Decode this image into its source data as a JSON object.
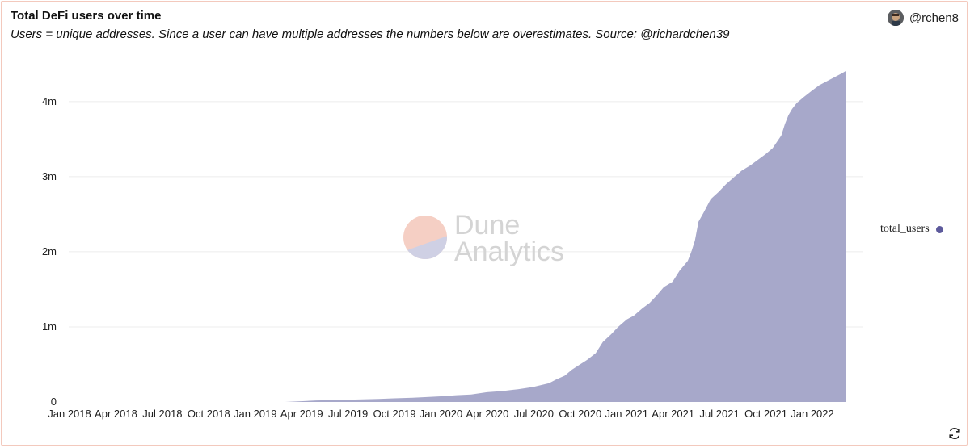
{
  "header": {
    "title": "Total DeFi users over time",
    "subtitle": "Users = unique addresses. Since a user can have multiple addresses the numbers below are overestimates. Source: @richardchen39",
    "author": "@rchen8"
  },
  "watermark": {
    "line1": "Dune",
    "line2": "Analytics"
  },
  "colors": {
    "series": "#a7a8ca",
    "legend_dot": "#5d5a9c",
    "grid": "#ececec",
    "border": "#f3c9bd",
    "watermark_top": "#f5cfc4",
    "watermark_bottom": "#cfd0e4"
  },
  "chart_data": {
    "type": "area",
    "title": "Total DeFi users over time",
    "xlabel": "",
    "ylabel": "",
    "xlim": [
      "2018-01-01",
      "2022-03-15"
    ],
    "ylim": [
      0,
      4600000
    ],
    "grid": true,
    "legend_position": "right",
    "x_ticks": [
      "Jan 2018",
      "Apr 2018",
      "Jul 2018",
      "Oct 2018",
      "Jan 2019",
      "Apr 2019",
      "Jul 2019",
      "Oct 2019",
      "Jan 2020",
      "Apr 2020",
      "Jul 2020",
      "Oct 2020",
      "Jan 2021",
      "Apr 2021",
      "Jul 2021",
      "Oct 2021",
      "Jan 2022"
    ],
    "y_ticks": [
      "0",
      "1m",
      "2m",
      "3m",
      "4m"
    ],
    "y_tick_values": [
      0,
      1000000,
      2000000,
      3000000,
      4000000
    ],
    "series": [
      {
        "name": "total_users",
        "x": [
          "2019-03-01",
          "2019-04-01",
          "2019-05-01",
          "2019-06-01",
          "2019-07-01",
          "2019-08-01",
          "2019-09-01",
          "2019-10-01",
          "2019-11-01",
          "2019-12-01",
          "2020-01-01",
          "2020-02-01",
          "2020-03-01",
          "2020-04-01",
          "2020-05-01",
          "2020-06-01",
          "2020-07-01",
          "2020-08-01",
          "2020-08-15",
          "2020-09-01",
          "2020-09-15",
          "2020-10-01",
          "2020-10-15",
          "2020-11-01",
          "2020-11-15",
          "2020-12-01",
          "2020-12-15",
          "2021-01-01",
          "2021-01-15",
          "2021-02-01",
          "2021-02-15",
          "2021-03-01",
          "2021-03-15",
          "2021-04-01",
          "2021-04-15",
          "2021-05-01",
          "2021-05-08",
          "2021-05-15",
          "2021-05-22",
          "2021-06-01",
          "2021-06-15",
          "2021-07-01",
          "2021-07-15",
          "2021-08-01",
          "2021-08-15",
          "2021-09-01",
          "2021-09-15",
          "2021-10-01",
          "2021-10-15",
          "2021-11-01",
          "2021-11-08",
          "2021-11-15",
          "2021-11-22",
          "2021-12-01",
          "2021-12-15",
          "2022-01-01",
          "2022-01-15",
          "2022-02-01",
          "2022-02-15",
          "2022-03-01",
          "2022-03-08"
        ],
        "y": [
          0,
          10000,
          20000,
          25000,
          30000,
          35000,
          40000,
          48000,
          55000,
          65000,
          75000,
          90000,
          100000,
          130000,
          145000,
          170000,
          200000,
          250000,
          300000,
          350000,
          430000,
          500000,
          560000,
          650000,
          800000,
          900000,
          1000000,
          1100000,
          1150000,
          1250000,
          1320000,
          1420000,
          1530000,
          1600000,
          1750000,
          1880000,
          2000000,
          2150000,
          2400000,
          2520000,
          2700000,
          2800000,
          2900000,
          3000000,
          3080000,
          3150000,
          3220000,
          3300000,
          3380000,
          3550000,
          3700000,
          3820000,
          3900000,
          3980000,
          4060000,
          4150000,
          4220000,
          4280000,
          4330000,
          4380000,
          4410000
        ]
      }
    ]
  }
}
